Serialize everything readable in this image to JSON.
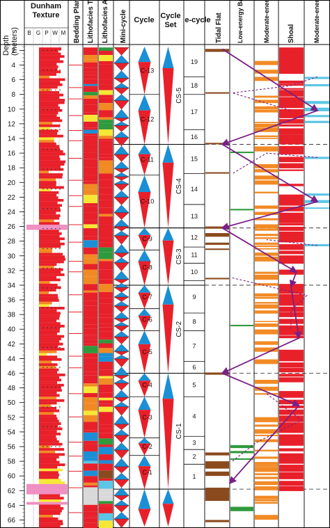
{
  "headers": {
    "depth": "Depth",
    "depth_unit": "(meters)",
    "dunham": "Dunham",
    "texture": "Texture",
    "texture_cols": [
      "B",
      "G",
      "P",
      "W",
      "M"
    ],
    "bedding": "Bedding Plane",
    "litho_type": "Lithofacies Type",
    "litho_assoc": "Lithofacies Association",
    "minicycle": "Mini-cycle",
    "cycle": "Cycle",
    "cycleset": "Cycle Set",
    "ecycle": "e-cycle",
    "tidal": "Tidal Flat",
    "low": "Low-energy Backshoal",
    "moderate_back": "Moderate-energy Backshoal",
    "shoal": "Shoal",
    "moderate_fore": "Moderate-energy Foreshoal"
  },
  "depth_ticks": [
    "2",
    "4",
    "6",
    "8",
    "10",
    "12",
    "14",
    "16",
    "18",
    "20",
    "22",
    "24",
    "26",
    "28",
    "30",
    "32",
    "34",
    "36",
    "38",
    "40",
    "42",
    "44",
    "46",
    "48",
    "50",
    "52",
    "54",
    "56",
    "58",
    "60",
    "62",
    "64",
    "66"
  ],
  "cycles": [
    {
      "label": "C-13",
      "top": 1.5,
      "bottom": 8.0
    },
    {
      "label": "C-12",
      "top": 8.0,
      "bottom": 14.8
    },
    {
      "label": "C-11",
      "top": 14.8,
      "bottom": 19.0
    },
    {
      "label": "C-10",
      "top": 19.0,
      "bottom": 26.2
    },
    {
      "label": "C-9",
      "top": 26.2,
      "bottom": 29.2
    },
    {
      "label": "C-8",
      "top": 29.2,
      "bottom": 34.0
    },
    {
      "label": "C-7",
      "top": 34.0,
      "bottom": 37.2
    },
    {
      "label": "C-6",
      "top": 37.2,
      "bottom": 40.2
    },
    {
      "label": "C-5",
      "top": 40.2,
      "bottom": 46.0
    },
    {
      "label": "C-4",
      "top": 46.0,
      "bottom": 49.2
    },
    {
      "label": "C-3",
      "top": 49.2,
      "bottom": 54.8
    },
    {
      "label": "C-2",
      "top": 54.8,
      "bottom": 57.2
    },
    {
      "label": "C-1",
      "top": 57.2,
      "bottom": 61.8
    }
  ],
  "cycle_sets": [
    {
      "label": "CS-5",
      "top": 1.5,
      "bottom": 14.8
    },
    {
      "label": "CS-4",
      "top": 14.8,
      "bottom": 26.2
    },
    {
      "label": "CS-3",
      "top": 26.2,
      "bottom": 34.0
    },
    {
      "label": "CS-2",
      "top": 34.0,
      "bottom": 46.0
    },
    {
      "label": "CS-1",
      "top": 46.0,
      "bottom": 61.8
    }
  ],
  "e_cycles": [
    {
      "label": "19",
      "top": 1.5,
      "bottom": 5.6
    },
    {
      "label": "18",
      "top": 5.6,
      "bottom": 8.0
    },
    {
      "label": "17",
      "top": 8.0,
      "bottom": 12.8
    },
    {
      "label": "16",
      "top": 12.8,
      "bottom": 14.8
    },
    {
      "label": "15",
      "top": 14.8,
      "bottom": 18.8
    },
    {
      "label": "14",
      "top": 18.8,
      "bottom": 23.0
    },
    {
      "label": "13",
      "top": 23.0,
      "bottom": 26.2
    },
    {
      "label": "12",
      "top": 26.2,
      "bottom": 28.8
    },
    {
      "label": "11",
      "top": 28.8,
      "bottom": 31.0
    },
    {
      "label": "10",
      "top": 31.0,
      "bottom": 33.4
    },
    {
      "label": "9",
      "top": 33.4,
      "bottom": 37.8
    },
    {
      "label": "8",
      "top": 37.8,
      "bottom": 40.2
    },
    {
      "label": "7",
      "top": 40.2,
      "bottom": 44.4
    },
    {
      "label": "6",
      "top": 44.4,
      "bottom": 46.0
    },
    {
      "label": "5",
      "top": 46.0,
      "bottom": 49.2
    },
    {
      "label": "4",
      "top": 49.2,
      "bottom": 54.6
    },
    {
      "label": "3",
      "top": 54.6,
      "bottom": 56.4
    },
    {
      "label": "2",
      "top": 56.4,
      "bottom": 58.4
    },
    {
      "label": "1",
      "top": 58.4,
      "bottom": 61.8
    }
  ],
  "boundaries": [
    14.8,
    26.2,
    34.0,
    46.0,
    61.8
  ],
  "solid_path": [
    {
      "facies": 0.2,
      "depth": 1.8
    },
    {
      "facies": 4.5,
      "depth": 10.2
    },
    {
      "facies": 0.2,
      "depth": 14.8
    },
    {
      "facies": 4.5,
      "depth": 22.6
    },
    {
      "facies": 0.2,
      "depth": 26.2
    },
    {
      "facies": 3.2,
      "depth": 32.2
    },
    {
      "facies": 3.0,
      "depth": 34.2
    },
    {
      "facies": 3.3,
      "depth": 41.2
    },
    {
      "facies": 0.2,
      "depth": 46.0
    },
    {
      "facies": 3.3,
      "depth": 50.4
    },
    {
      "facies": 0.5,
      "depth": 61.0
    }
  ],
  "dashed_paths": [
    [
      {
        "facies": 4.6,
        "depth": 5.6
      },
      {
        "facies": 3.0,
        "depth": 6.8
      },
      {
        "facies": 0.6,
        "depth": 7.8
      },
      {
        "facies": 3.0,
        "depth": 10.2
      }
    ],
    [
      {
        "facies": 4.6,
        "depth": 16.6
      },
      {
        "facies": 2.0,
        "depth": 16.0
      },
      {
        "facies": 0.6,
        "depth": 18.8
      }
    ],
    [
      {
        "facies": 4.6,
        "depth": 28.6
      },
      {
        "facies": 2.0,
        "depth": 27.8
      }
    ],
    [
      {
        "facies": 0.6,
        "depth": 33.0
      },
      {
        "facies": 3.6,
        "depth": 35.4
      },
      {
        "facies": 3.0,
        "depth": 37.4
      },
      {
        "facies": 3.0,
        "depth": 40.2
      }
    ],
    [
      {
        "facies": 2.0,
        "depth": 48.8
      },
      {
        "facies": 3.4,
        "depth": 52.4
      },
      {
        "facies": 1.6,
        "depth": 55.4
      },
      {
        "facies": 0.6,
        "depth": 58.0
      }
    ]
  ],
  "colors": {
    "red": "#e8202a",
    "orange": "#f28a24",
    "yellow": "#f7e735",
    "pink": "#ef8fc1",
    "green": "#2f9a3c",
    "brown": "#8b4a1d",
    "blue": "#1b8fd6",
    "cyan": "#5bc6e6",
    "navy": "#1f2f7a",
    "purple": "#7a1f86",
    "grey": "#d9d9d9"
  }
}
